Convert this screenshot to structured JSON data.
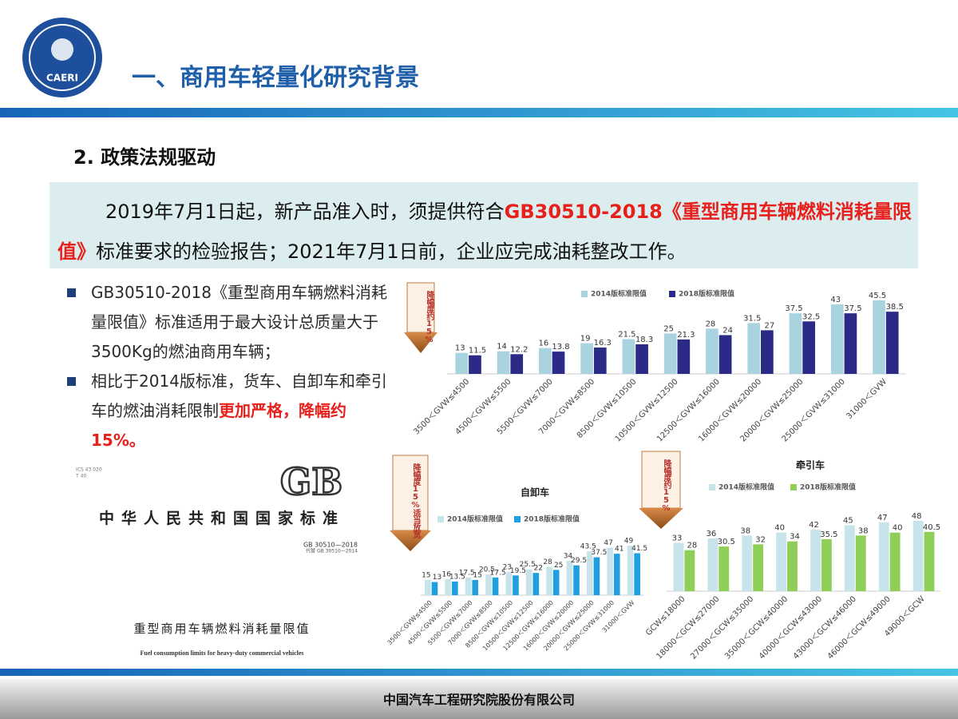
{
  "header": {
    "title": "一、商用车轻量化研究背景",
    "logo_text": "CAERI"
  },
  "section_title": "2. 政策法规驱动",
  "intro": [
    {
      "text": "2019年7月1日起，新产品准入时，须提供符合"
    },
    {
      "text": "GB30510-2018《重型商用车辆燃料消耗量限值》",
      "color": "#e8201c"
    },
    {
      "text": "标准要求的检验报告；2021年7月1日前，企业应完成油耗整改工作。"
    }
  ],
  "bullets": [
    [
      {
        "text": "GB30510-2018《重型商用车辆燃料消耗量限值》标准适用于最大设计总质量大于3500Kg的燃油商用车辆；"
      }
    ],
    [
      {
        "text": "相比于2014版标准，货车、自卸车和牵引车的燃油消耗限制"
      },
      {
        "text": "更加严格，降幅约15%。",
        "color": "#e8201c"
      }
    ]
  ],
  "standard_cover": {
    "ics": "ICS 43.020",
    "code": "T 40",
    "logo": "GB",
    "issuer": "中华人民共和国国家标准",
    "number": "GB 30510—2018",
    "replaces": "代替 GB 30510—2014",
    "title_cn": "重型商用车辆燃料消耗量限值",
    "title_en": "Fuel consumption limits for heavy-duty commercial vehicles"
  },
  "chart_data": [
    {
      "type": "bar",
      "annotation": "降幅度约15%",
      "categories": [
        "3500＜GVW≤4500",
        "4500＜GVW≤5500",
        "5500＜GVW≤7000",
        "7000＜GVW≤8500",
        "8500＜GVW≤10500",
        "10500＜GVW≤12500",
        "12500＜GVW≤16000",
        "16000＜GVW≤20000",
        "20000＜GVW≤25000",
        "25000＜GVW≤31000",
        "31000＜GVW"
      ],
      "series": [
        {
          "name": "2014版标准限值",
          "color": "#a8d3df",
          "values": [
            13,
            14,
            16,
            19,
            21.5,
            25,
            28,
            31.5,
            37.5,
            43,
            45.5
          ]
        },
        {
          "name": "2018版标准限值",
          "color": "#2b2a86",
          "values": [
            11.5,
            12.2,
            13.8,
            16.3,
            18.3,
            21.3,
            24,
            27,
            32.5,
            37.5,
            38.5
          ]
        }
      ]
    },
    {
      "type": "bar",
      "title": "自卸车",
      "annotation": "降幅度15%适当放宽",
      "categories": [
        "3500＜GVW≤4500",
        "4500＜GVW≤5500",
        "5500＜GVW≤7000",
        "7000＜GVW≤8500",
        "8500＜GVW≤10500",
        "10500＜GVW≤12500",
        "12500＜GVW≤16000",
        "16000＜GVW≤20000",
        "20000＜GVW≤25000",
        "25000＜GVW≤31000",
        "31000＜GVW"
      ],
      "series": [
        {
          "name": "2014版标准限值",
          "color": "#c7e4ea",
          "values": [
            15,
            16,
            17.5,
            20.5,
            23,
            25.5,
            28,
            34,
            43.5,
            47,
            49
          ]
        },
        {
          "name": "2018版标准限值",
          "color": "#1f9fe0",
          "values": [
            13,
            13.5,
            15,
            17.5,
            19.5,
            22,
            25,
            29.5,
            37.5,
            41,
            41.5
          ]
        }
      ]
    },
    {
      "type": "bar",
      "title": "牵引车",
      "annotation": "降幅度约15%",
      "categories": [
        "GCW≤18000",
        "18000＜GCW≤27000",
        "27000＜GCW≤35000",
        "35000＜GCW≤40000",
        "40000＜GCW≤43000",
        "43000＜GCW≤46000",
        "46000＜GCW≤49000",
        "49000＜GCW"
      ],
      "series": [
        {
          "name": "2014版标准限值",
          "color": "#c7e4ea",
          "values": [
            33,
            36,
            38,
            40,
            42,
            45,
            47,
            48
          ]
        },
        {
          "name": "2018版标准限值",
          "color": "#8fcf57",
          "values": [
            28,
            30.5,
            32,
            34,
            35.5,
            38,
            40,
            40.5
          ]
        }
      ]
    }
  ],
  "footer": "中国汽车工程研究院股份有限公司"
}
